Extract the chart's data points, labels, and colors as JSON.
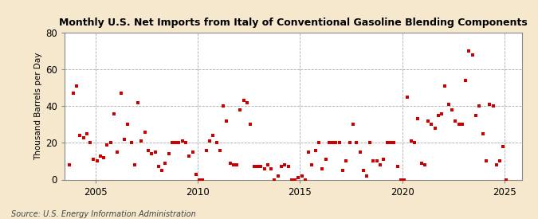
{
  "title": "Monthly U.S. Net Imports from Italy of Conventional Gasoline Blending Components",
  "ylabel": "Thousand Barrels per Day",
  "source": "Source: U.S. Energy Information Administration",
  "background_color": "#f5e8cc",
  "plot_background": "#ffffff",
  "marker_color": "#cc0000",
  "xlim": [
    2003.5,
    2025.83
  ],
  "ylim": [
    0,
    80
  ],
  "yticks": [
    0,
    20,
    40,
    60,
    80
  ],
  "xticks": [
    2005,
    2010,
    2015,
    2020,
    2025
  ],
  "data": [
    [
      2003.75,
      8
    ],
    [
      2003.92,
      47
    ],
    [
      2004.08,
      51
    ],
    [
      2004.25,
      24
    ],
    [
      2004.42,
      23
    ],
    [
      2004.58,
      25
    ],
    [
      2004.75,
      20
    ],
    [
      2004.92,
      11
    ],
    [
      2005.08,
      10
    ],
    [
      2005.25,
      13
    ],
    [
      2005.42,
      12
    ],
    [
      2005.58,
      19
    ],
    [
      2005.75,
      20
    ],
    [
      2005.92,
      36
    ],
    [
      2006.08,
      15
    ],
    [
      2006.25,
      47
    ],
    [
      2006.42,
      22
    ],
    [
      2006.58,
      30
    ],
    [
      2006.75,
      20
    ],
    [
      2006.92,
      8
    ],
    [
      2007.08,
      42
    ],
    [
      2007.25,
      21
    ],
    [
      2007.42,
      26
    ],
    [
      2007.58,
      16
    ],
    [
      2007.75,
      14
    ],
    [
      2007.92,
      15
    ],
    [
      2008.08,
      7
    ],
    [
      2008.25,
      5
    ],
    [
      2008.42,
      9
    ],
    [
      2008.58,
      14
    ],
    [
      2008.75,
      20
    ],
    [
      2008.92,
      20
    ],
    [
      2009.08,
      20
    ],
    [
      2009.25,
      21
    ],
    [
      2009.42,
      20
    ],
    [
      2009.58,
      13
    ],
    [
      2009.75,
      15
    ],
    [
      2009.92,
      3
    ],
    [
      2010.08,
      0
    ],
    [
      2010.25,
      0
    ],
    [
      2010.42,
      16
    ],
    [
      2010.58,
      21
    ],
    [
      2010.75,
      24
    ],
    [
      2010.92,
      20
    ],
    [
      2011.08,
      16
    ],
    [
      2011.25,
      40
    ],
    [
      2011.42,
      32
    ],
    [
      2011.58,
      9
    ],
    [
      2011.75,
      8
    ],
    [
      2011.92,
      8
    ],
    [
      2012.08,
      38
    ],
    [
      2012.25,
      43
    ],
    [
      2012.42,
      42
    ],
    [
      2012.58,
      30
    ],
    [
      2012.75,
      7
    ],
    [
      2012.92,
      7
    ],
    [
      2013.08,
      7
    ],
    [
      2013.25,
      6
    ],
    [
      2013.42,
      8
    ],
    [
      2013.58,
      6
    ],
    [
      2013.75,
      0
    ],
    [
      2013.92,
      2
    ],
    [
      2014.08,
      7
    ],
    [
      2014.25,
      8
    ],
    [
      2014.42,
      7
    ],
    [
      2014.58,
      0
    ],
    [
      2014.75,
      0
    ],
    [
      2014.92,
      1
    ],
    [
      2015.08,
      2
    ],
    [
      2015.25,
      0
    ],
    [
      2015.42,
      15
    ],
    [
      2015.58,
      8
    ],
    [
      2015.75,
      16
    ],
    [
      2015.92,
      20
    ],
    [
      2016.08,
      6
    ],
    [
      2016.25,
      11
    ],
    [
      2016.42,
      20
    ],
    [
      2016.58,
      20
    ],
    [
      2016.75,
      20
    ],
    [
      2016.92,
      20
    ],
    [
      2017.08,
      5
    ],
    [
      2017.25,
      10
    ],
    [
      2017.42,
      20
    ],
    [
      2017.58,
      30
    ],
    [
      2017.75,
      20
    ],
    [
      2017.92,
      15
    ],
    [
      2018.08,
      5
    ],
    [
      2018.25,
      2
    ],
    [
      2018.42,
      20
    ],
    [
      2018.58,
      10
    ],
    [
      2018.75,
      10
    ],
    [
      2018.92,
      8
    ],
    [
      2019.08,
      11
    ],
    [
      2019.25,
      20
    ],
    [
      2019.42,
      20
    ],
    [
      2019.58,
      20
    ],
    [
      2019.75,
      7
    ],
    [
      2019.92,
      0
    ],
    [
      2020.08,
      0
    ],
    [
      2020.25,
      45
    ],
    [
      2020.42,
      21
    ],
    [
      2020.58,
      20
    ],
    [
      2020.75,
      33
    ],
    [
      2020.92,
      9
    ],
    [
      2021.08,
      8
    ],
    [
      2021.25,
      32
    ],
    [
      2021.42,
      30
    ],
    [
      2021.58,
      28
    ],
    [
      2021.75,
      35
    ],
    [
      2021.92,
      36
    ],
    [
      2022.08,
      51
    ],
    [
      2022.25,
      41
    ],
    [
      2022.42,
      38
    ],
    [
      2022.58,
      32
    ],
    [
      2022.75,
      30
    ],
    [
      2022.92,
      30
    ],
    [
      2023.08,
      54
    ],
    [
      2023.25,
      70
    ],
    [
      2023.42,
      68
    ],
    [
      2023.58,
      35
    ],
    [
      2023.75,
      40
    ],
    [
      2023.92,
      25
    ],
    [
      2024.08,
      10
    ],
    [
      2024.25,
      41
    ],
    [
      2024.42,
      40
    ],
    [
      2024.58,
      8
    ],
    [
      2024.75,
      10
    ],
    [
      2024.92,
      18
    ],
    [
      2025.08,
      0
    ]
  ]
}
